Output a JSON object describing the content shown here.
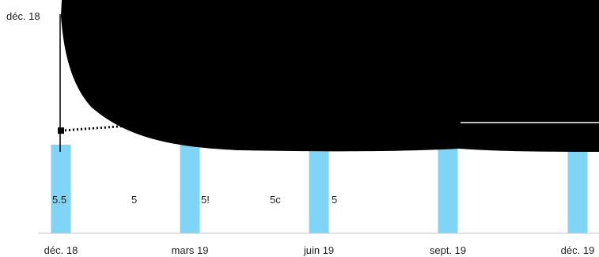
{
  "chart_data": {
    "type": "bar",
    "title": "",
    "xlabel": "",
    "ylabel": "",
    "categories": [
      "déc. 18",
      "mars 19",
      "juin 19",
      "sept. 19",
      "déc. 19"
    ],
    "y_top_label": "déc. 18",
    "bar_values": [
      0.38,
      0.43,
      0.51,
      0.58,
      0.63
    ],
    "value_labels": [
      "5.5",
      "5",
      "5!",
      "5c",
      "5"
    ],
    "line_points": [
      0.44,
      0.48
    ],
    "colors": {
      "bar": "#80d4f5",
      "overlay": "#000000",
      "axis": "#c8c8c8",
      "text": "#1f1f1f"
    }
  }
}
